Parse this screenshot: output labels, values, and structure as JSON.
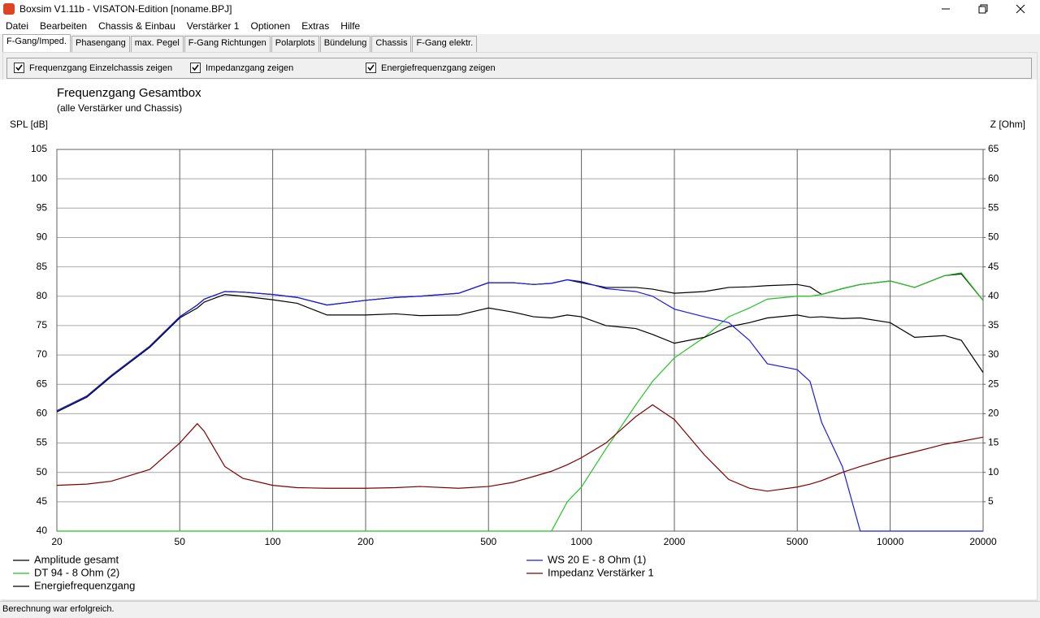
{
  "window": {
    "title": "Boxsim V1.11b - VISATON-Edition [noname.BPJ]"
  },
  "menu": [
    "Datei",
    "Bearbeiten",
    "Chassis & Einbau",
    "Verstärker 1",
    "Optionen",
    "Extras",
    "Hilfe"
  ],
  "tabs": [
    "F-Gang/Imped.",
    "Phasengang",
    "max. Pegel",
    "F-Gang Richtungen",
    "Polarplots",
    "Bündelung",
    "Chassis",
    "F-Gang elektr."
  ],
  "checkboxes": [
    {
      "label": "Frequenzgang Einzelchassis zeigen",
      "checked": true
    },
    {
      "label": "Impedanzgang zeigen",
      "checked": true
    },
    {
      "label": "Energiefrequenzgang zeigen",
      "checked": true
    }
  ],
  "chart_data": {
    "type": "line",
    "title": "Frequenzgang Gesamtbox",
    "subtitle": "(alle Verstärker und Chassis)",
    "y_label": "SPL [dB]",
    "y2_label": "Z [Ohm]",
    "log_x": true,
    "grid": true,
    "xlim": [
      20,
      20000
    ],
    "xticks": [
      20,
      50,
      100,
      200,
      500,
      1000,
      2000,
      5000,
      10000,
      20000
    ],
    "ylim": [
      40,
      105
    ],
    "yticks": [
      40,
      45,
      50,
      55,
      60,
      65,
      70,
      75,
      80,
      85,
      90,
      95,
      100,
      105
    ],
    "y2lim": [
      0,
      65
    ],
    "y2ticks": [
      5,
      10,
      15,
      20,
      25,
      30,
      35,
      40,
      45,
      50,
      55,
      60,
      65
    ],
    "x": [
      20,
      25,
      30,
      40,
      50,
      57,
      60,
      70,
      80,
      100,
      120,
      150,
      200,
      250,
      300,
      400,
      500,
      600,
      700,
      800,
      900,
      1000,
      1200,
      1500,
      1700,
      2000,
      2500,
      3000,
      3500,
      4000,
      5000,
      5500,
      6000,
      7000,
      8000,
      10000,
      12000,
      15000,
      17000,
      20000
    ],
    "series": [
      {
        "name": "Amplitude gesamt",
        "color": "#000000",
        "values": [
          60.5,
          63,
          66.5,
          71.5,
          76.5,
          78.5,
          79.5,
          80.8,
          80.7,
          80.3,
          79.8,
          78.5,
          79.3,
          79.8,
          80,
          80.5,
          82.3,
          82.3,
          82,
          82.2,
          82.8,
          82.3,
          81.5,
          81.5,
          81.2,
          80.5,
          80.8,
          81.5,
          81.6,
          81.8,
          82,
          81.6,
          80.3,
          81.3,
          82,
          82.6,
          81.5,
          83.5,
          83.8,
          79.3
        ]
      },
      {
        "name": "DT 94 - 8 Ohm (2)",
        "color": "#22c322",
        "values": [
          40,
          40,
          40,
          40,
          40,
          40,
          40,
          40,
          40,
          40,
          40,
          40,
          40,
          40,
          40,
          40,
          40,
          40,
          40,
          40,
          45,
          47.5,
          54,
          61.5,
          65.5,
          69.5,
          73,
          76.5,
          78,
          79.5,
          80,
          80,
          80.3,
          81.3,
          82,
          82.6,
          81.5,
          83.5,
          84,
          79.3
        ]
      },
      {
        "name": "Energiefrequenzgang",
        "color": "#000000",
        "values": [
          60.3,
          62.8,
          66.3,
          71.3,
          76.3,
          78,
          79,
          80.3,
          80,
          79.4,
          78.8,
          76.8,
          76.8,
          77,
          76.7,
          76.8,
          78,
          77.3,
          76.5,
          76.3,
          76.8,
          76.5,
          75,
          74.5,
          73.5,
          72,
          73,
          74.8,
          75.5,
          76.3,
          76.8,
          76.4,
          76.5,
          76.2,
          76.3,
          75.5,
          73,
          73.3,
          72.5,
          67
        ]
      },
      {
        "name": "WS 20 E - 8 Ohm  (1)",
        "color": "#1a1aee",
        "values": [
          60.5,
          63,
          66.5,
          71.5,
          76.5,
          78.5,
          79.5,
          80.8,
          80.7,
          80.3,
          79.8,
          78.5,
          79.3,
          79.8,
          80,
          80.5,
          82.3,
          82.3,
          82,
          82.2,
          82.8,
          82.5,
          81.3,
          80.8,
          80,
          77.8,
          76.5,
          75.5,
          72.5,
          68.5,
          67.5,
          65.5,
          58.5,
          51,
          40,
          40,
          40,
          40,
          40,
          40
        ]
      },
      {
        "name": "Impedanz Verstärker 1",
        "color": "#800000",
        "axis": "y2",
        "values": [
          7.8,
          8,
          8.5,
          10.5,
          15,
          18.3,
          17,
          11,
          9,
          7.8,
          7.4,
          7.3,
          7.3,
          7.4,
          7.6,
          7.3,
          7.6,
          8.3,
          9.3,
          10.2,
          11.3,
          12.5,
          15,
          19.5,
          21.5,
          19,
          13,
          8.8,
          7.3,
          6.8,
          7.5,
          8,
          8.6,
          10,
          11,
          12.5,
          13.5,
          14.8,
          15.3,
          16
        ]
      }
    ]
  },
  "status": "Berechnung war erfolgreich."
}
